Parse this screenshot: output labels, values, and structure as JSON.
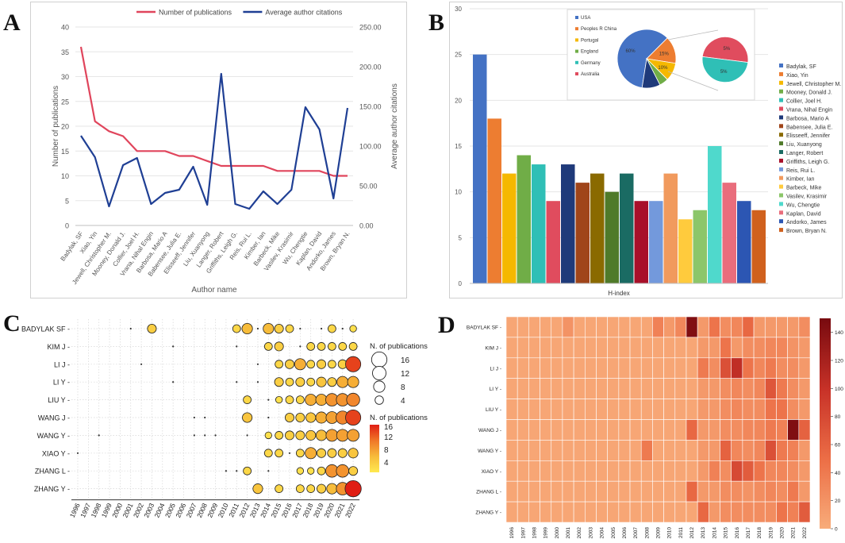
{
  "panels": {
    "a": "A",
    "b": "B",
    "c": "C",
    "d": "D"
  },
  "chart_data": [
    {
      "type": "line",
      "panel": "A",
      "categories": [
        "Badylak, SF",
        "Xiao, Yin",
        "Jewell, Christopher M.",
        "Mooney, Donald J.",
        "Collier, Joel H.",
        "Vrana, Nihal Engin",
        "Barbosa, Mario A",
        "Babensee, Julia E.",
        "Elisseeff, Jennifer",
        "Liu, Xuanyong",
        "Langer, Robert",
        "Griffiths, Leigh G.",
        "Reis, Rui L.",
        "Kimber, Ian",
        "Barbeck, Mike",
        "Vasilev, Krasimir",
        "Wu, Chengtie",
        "Kaplan, David",
        "Andorko, James",
        "Brown, Bryan N."
      ],
      "series": [
        {
          "name": "Number of publications",
          "axis": "left",
          "color": "#e0455c",
          "values": [
            36,
            21,
            19,
            18,
            15,
            15,
            15,
            14,
            14,
            13,
            12,
            12,
            12,
            12,
            11,
            11,
            11,
            11,
            10,
            10
          ]
        },
        {
          "name": "Average author citations",
          "axis": "right",
          "color": "#1f3f94",
          "values": [
            113,
            86,
            24,
            76,
            85,
            27,
            41,
            45,
            74,
            26,
            191,
            27,
            21,
            43,
            27,
            45,
            149,
            121,
            34,
            148
          ]
        }
      ],
      "xlabel": "Author name",
      "ylabel": "Number of publications",
      "y2label": "Average author citations",
      "ylim": [
        0,
        40
      ],
      "yticks": [
        "0",
        "5",
        "10",
        "15",
        "20",
        "25",
        "30",
        "35",
        "40"
      ],
      "y2lim": [
        0,
        250
      ],
      "y2ticks": [
        "0.00",
        "50.00",
        "100.00",
        "150.00",
        "200.00",
        "250.00"
      ],
      "legend": "top"
    },
    {
      "type": "bar",
      "panel": "B",
      "xlabel": "H-index",
      "ylim": [
        0,
        30
      ],
      "yticks": [
        "0",
        "5",
        "10",
        "15",
        "20",
        "25",
        "30"
      ],
      "categories": [
        "Badylak, SF",
        "Xiao, Yin",
        "Jewell, Christopher M.",
        "Mooney, Donald J.",
        "Collier, Joel H.",
        "Vrana, Nihal Engin",
        "Barbosa, Mario A",
        "Babensee, Julia E.",
        "Elisseeff, Jennifer",
        "Liu, Xuanyong",
        "Langer, Robert",
        "Griffiths, Leigh G.",
        "Reis, Rui L.",
        "Kimber, Ian",
        "Barbeck, Mike",
        "Vasilev, Krasimir",
        "Wu, Chengtie",
        "Kaplan, David",
        "Andorko, James",
        "Brown, Bryan N."
      ],
      "values": [
        25,
        18,
        12,
        14,
        13,
        9,
        13,
        11,
        12,
        10,
        12,
        9,
        9,
        12,
        7,
        8,
        15,
        11,
        9,
        8
      ],
      "colors": [
        "#4472c4",
        "#ed7d31",
        "#f5b800",
        "#70ad47",
        "#2fbfb6",
        "#e04c5e",
        "#1f3a7a",
        "#a0451a",
        "#8a6a00",
        "#4f7a2a",
        "#1a6b63",
        "#a8102a",
        "#7399dc",
        "#f19a5d",
        "#ffcb3d",
        "#8cc66a",
        "#4fd9cc",
        "#e96d7c",
        "#2c56b3",
        "#d0611e"
      ],
      "legend": "right",
      "inset": {
        "type": "pie",
        "categories": [
          "USA",
          "Peoples R China",
          "Portugal",
          "England",
          "Germany",
          "Australia"
        ],
        "values": [
          60,
          15,
          10,
          5,
          5,
          5
        ],
        "labels": [
          "60%",
          "15%",
          "10%",
          "5%",
          "5%",
          "5%"
        ],
        "colors": [
          "#4472c4",
          "#ed7d31",
          "#f5b800",
          "#70ad47",
          "#2fbfb6",
          "#e04c5e"
        ],
        "extra_color": "#1f3a7a"
      }
    },
    {
      "type": "scatter",
      "panel": "C",
      "rows": [
        "BADYLAK SF",
        "KIM J",
        "LI J",
        "LI Y",
        "LIU Y",
        "WANG J",
        "WANG Y",
        "XIAO Y",
        "ZHANG L",
        "ZHANG Y"
      ],
      "years": [
        "1996",
        "1997",
        "1998",
        "1999",
        "2000",
        "2001",
        "2002",
        "2003",
        "2004",
        "2005",
        "2006",
        "2007",
        "2008",
        "2009",
        "2010",
        "2011",
        "2012",
        "2013",
        "2014",
        "2015",
        "2016",
        "2017",
        "2018",
        "2019",
        "2020",
        "2021",
        "2022"
      ],
      "points": [
        [
          0,
          5,
          1
        ],
        [
          0,
          7,
          4
        ],
        [
          0,
          15,
          3
        ],
        [
          0,
          16,
          6
        ],
        [
          0,
          17,
          1
        ],
        [
          0,
          18,
          6
        ],
        [
          0,
          19,
          4
        ],
        [
          0,
          20,
          3
        ],
        [
          0,
          21,
          1
        ],
        [
          0,
          23,
          1
        ],
        [
          0,
          24,
          3
        ],
        [
          0,
          25,
          1
        ],
        [
          0,
          26,
          2
        ],
        [
          1,
          9,
          1
        ],
        [
          1,
          15,
          1
        ],
        [
          1,
          18,
          3
        ],
        [
          1,
          19,
          4
        ],
        [
          1,
          21,
          1
        ],
        [
          1,
          22,
          3
        ],
        [
          1,
          23,
          3
        ],
        [
          1,
          24,
          3
        ],
        [
          1,
          25,
          3
        ],
        [
          1,
          26,
          3
        ],
        [
          2,
          6,
          1
        ],
        [
          2,
          17,
          1
        ],
        [
          2,
          19,
          3
        ],
        [
          2,
          20,
          4
        ],
        [
          2,
          21,
          7
        ],
        [
          2,
          22,
          3
        ],
        [
          2,
          23,
          4
        ],
        [
          2,
          24,
          3
        ],
        [
          2,
          25,
          4
        ],
        [
          2,
          26,
          14
        ],
        [
          3,
          9,
          1
        ],
        [
          3,
          15,
          1
        ],
        [
          3,
          17,
          1
        ],
        [
          3,
          19,
          4
        ],
        [
          3,
          20,
          3
        ],
        [
          3,
          21,
          4
        ],
        [
          3,
          22,
          3
        ],
        [
          3,
          23,
          5
        ],
        [
          3,
          24,
          4
        ],
        [
          3,
          25,
          7
        ],
        [
          3,
          26,
          7
        ],
        [
          4,
          16,
          3
        ],
        [
          4,
          18,
          1
        ],
        [
          4,
          19,
          2
        ],
        [
          4,
          20,
          3
        ],
        [
          4,
          21,
          3
        ],
        [
          4,
          22,
          7
        ],
        [
          4,
          23,
          7
        ],
        [
          4,
          24,
          9
        ],
        [
          4,
          25,
          9
        ],
        [
          4,
          26,
          10
        ],
        [
          5,
          11,
          1
        ],
        [
          5,
          12,
          1
        ],
        [
          5,
          16,
          5
        ],
        [
          5,
          18,
          1
        ],
        [
          5,
          20,
          4
        ],
        [
          5,
          21,
          4
        ],
        [
          5,
          22,
          5
        ],
        [
          5,
          23,
          7
        ],
        [
          5,
          24,
          8
        ],
        [
          5,
          25,
          10
        ],
        [
          5,
          26,
          14
        ],
        [
          6,
          2,
          1
        ],
        [
          6,
          11,
          1
        ],
        [
          6,
          12,
          1
        ],
        [
          6,
          13,
          1
        ],
        [
          6,
          16,
          1
        ],
        [
          6,
          18,
          2
        ],
        [
          6,
          19,
          3
        ],
        [
          6,
          20,
          4
        ],
        [
          6,
          21,
          4
        ],
        [
          6,
          22,
          5
        ],
        [
          6,
          23,
          6
        ],
        [
          6,
          24,
          8
        ],
        [
          6,
          25,
          8
        ],
        [
          6,
          26,
          8
        ],
        [
          7,
          0,
          1
        ],
        [
          7,
          18,
          3
        ],
        [
          7,
          19,
          3
        ],
        [
          7,
          20,
          1
        ],
        [
          7,
          21,
          3
        ],
        [
          7,
          22,
          7
        ],
        [
          7,
          23,
          4
        ],
        [
          7,
          24,
          4
        ],
        [
          7,
          25,
          4
        ],
        [
          7,
          26,
          5
        ],
        [
          8,
          14,
          1
        ],
        [
          8,
          15,
          1
        ],
        [
          8,
          16,
          3
        ],
        [
          8,
          18,
          1
        ],
        [
          8,
          21,
          2
        ],
        [
          8,
          22,
          2
        ],
        [
          8,
          23,
          3
        ],
        [
          8,
          24,
          9
        ],
        [
          8,
          25,
          9
        ],
        [
          8,
          26,
          4
        ],
        [
          9,
          17,
          5
        ],
        [
          9,
          19,
          3
        ],
        [
          9,
          21,
          3
        ],
        [
          9,
          22,
          3
        ],
        [
          9,
          23,
          4
        ],
        [
          9,
          24,
          6
        ],
        [
          9,
          25,
          9
        ],
        [
          9,
          26,
          16
        ]
      ],
      "legend_title": "N. of publications",
      "size_legend": [
        "16",
        "12",
        "8",
        "4"
      ],
      "color_legend_title": "N. of publications",
      "color_ticks": [
        "16",
        "12",
        "8",
        "4"
      ],
      "color_range": [
        1,
        16
      ]
    },
    {
      "type": "heatmap",
      "panel": "D",
      "rows": [
        "BADYLAK SF",
        "KIM J",
        "LI J",
        "LI Y",
        "LIU Y",
        "WANG J",
        "WANG Y",
        "XIAO Y",
        "ZHANG L",
        "ZHANG Y"
      ],
      "columns": [
        "1996",
        "1997",
        "1998",
        "1999",
        "2000",
        "2001",
        "2002",
        "2003",
        "2004",
        "2005",
        "2006",
        "2007",
        "2008",
        "2009",
        "2010",
        "2011",
        "2012",
        "2013",
        "2014",
        "2015",
        "2016",
        "2017",
        "2018",
        "2019",
        "2020",
        "2021",
        "2022"
      ],
      "values": [
        [
          5,
          5,
          5,
          5,
          5,
          20,
          5,
          5,
          5,
          5,
          5,
          5,
          5,
          35,
          15,
          30,
          145,
          15,
          45,
          25,
          30,
          55,
          15,
          15,
          15,
          15,
          25
        ],
        [
          5,
          5,
          5,
          5,
          5,
          5,
          5,
          5,
          5,
          5,
          5,
          5,
          5,
          5,
          5,
          5,
          5,
          15,
          15,
          45,
          15,
          25,
          25,
          30,
          30,
          20,
          15
        ],
        [
          5,
          5,
          5,
          5,
          5,
          5,
          5,
          5,
          5,
          5,
          5,
          5,
          5,
          5,
          5,
          5,
          5,
          40,
          25,
          75,
          105,
          45,
          30,
          40,
          25,
          25,
          15
        ],
        [
          5,
          5,
          5,
          5,
          5,
          5,
          5,
          5,
          5,
          5,
          5,
          5,
          5,
          5,
          5,
          5,
          5,
          15,
          15,
          25,
          30,
          25,
          30,
          70,
          40,
          25,
          15
        ],
        [
          5,
          5,
          5,
          5,
          5,
          5,
          5,
          5,
          5,
          5,
          5,
          5,
          5,
          5,
          5,
          5,
          5,
          15,
          15,
          25,
          30,
          25,
          25,
          45,
          45,
          25,
          15
        ],
        [
          5,
          5,
          5,
          5,
          5,
          5,
          5,
          5,
          5,
          5,
          5,
          5,
          5,
          5,
          5,
          5,
          55,
          15,
          15,
          25,
          25,
          30,
          30,
          40,
          35,
          145,
          60
        ],
        [
          5,
          5,
          5,
          5,
          5,
          5,
          5,
          5,
          5,
          5,
          5,
          5,
          40,
          5,
          5,
          5,
          5,
          15,
          15,
          60,
          30,
          25,
          30,
          75,
          40,
          35,
          15
        ],
        [
          5,
          5,
          5,
          5,
          5,
          5,
          5,
          5,
          5,
          5,
          5,
          5,
          5,
          5,
          5,
          5,
          5,
          15,
          35,
          25,
          80,
          65,
          45,
          30,
          30,
          25,
          15
        ],
        [
          5,
          5,
          5,
          5,
          5,
          5,
          5,
          5,
          5,
          5,
          5,
          5,
          5,
          5,
          5,
          5,
          55,
          15,
          15,
          25,
          25,
          20,
          25,
          30,
          25,
          40,
          15
        ],
        [
          5,
          5,
          5,
          5,
          5,
          5,
          5,
          5,
          5,
          5,
          5,
          5,
          5,
          5,
          5,
          5,
          5,
          55,
          15,
          25,
          25,
          25,
          25,
          25,
          45,
          35,
          65
        ]
      ],
      "vmin": 0,
      "vmax": 150,
      "colorbar_ticks": [
        "0",
        "20",
        "40",
        "60",
        "80",
        "100",
        "120",
        "140"
      ]
    }
  ]
}
